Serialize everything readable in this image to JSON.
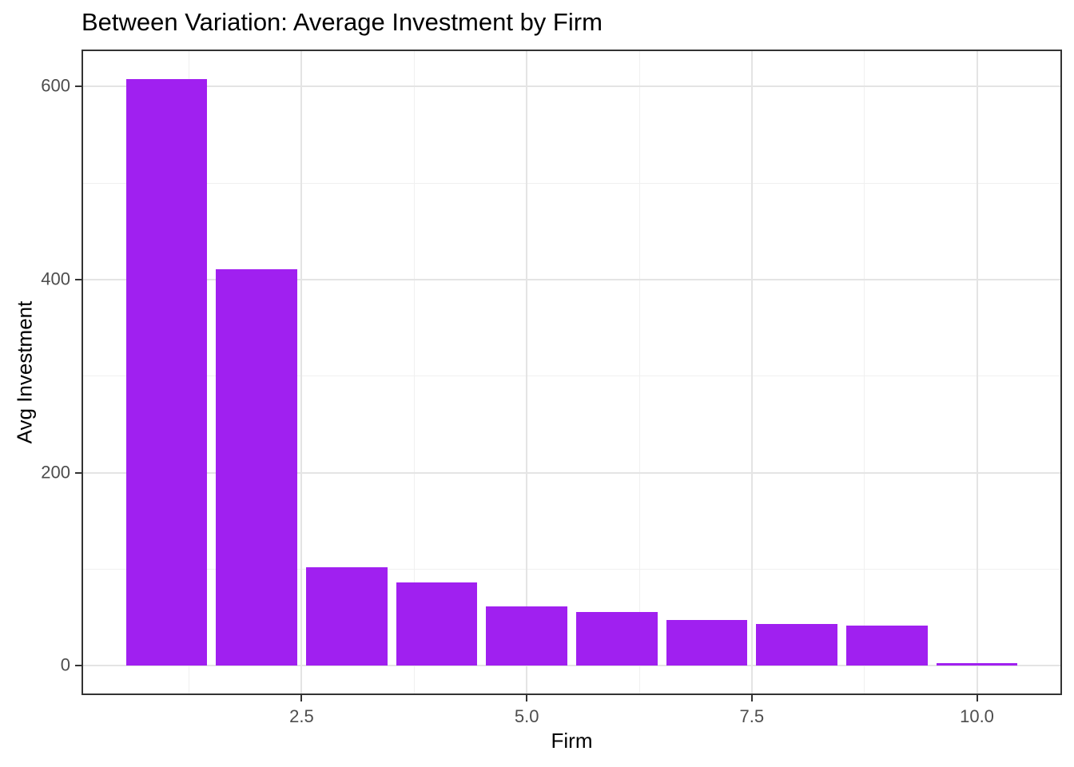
{
  "chart_data": {
    "type": "bar",
    "title": "Between Variation: Average Investment by Firm",
    "xlabel": "Firm",
    "ylabel": "Avg Investment",
    "x": [
      1,
      2,
      3,
      4,
      5,
      6,
      7,
      8,
      9,
      10
    ],
    "values": [
      608.02,
      410.46,
      102.29,
      86.12,
      61.74,
      55.41,
      47.59,
      42.89,
      41.89,
      2.98
    ],
    "bar_width": 0.9,
    "baseline": 0,
    "xlim": [
      0.055,
      10.945
    ],
    "ylim": [
      -30.4,
      638.4
    ],
    "x_ticks": {
      "values": [
        2.5,
        5.0,
        7.5,
        10.0
      ],
      "labels": [
        "2.5",
        "5.0",
        "7.5",
        "10.0"
      ]
    },
    "y_ticks": {
      "values": [
        0,
        200,
        400,
        600
      ],
      "labels": [
        "0",
        "200",
        "400",
        "600"
      ]
    },
    "x_minor": [
      1.25,
      3.75,
      6.25,
      8.75
    ],
    "y_minor": [
      100,
      300,
      500
    ],
    "grid": true,
    "legend": false,
    "colors": {
      "bar_fill": "#A020F0",
      "panel_border": "#333333",
      "tick_mark": "#333333",
      "grid_major": "#E4E4E4",
      "grid_minor": "#F0F0F0",
      "tick_label": "#4D4D4D",
      "title_text": "#000000",
      "axis_title_text": "#000000",
      "background": "#FFFFFF"
    }
  }
}
